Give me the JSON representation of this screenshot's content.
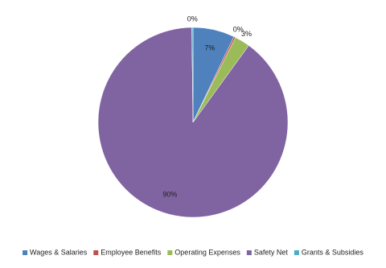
{
  "chart_data": {
    "type": "pie",
    "categories": [
      "Wages & Salaries",
      "Employee Benefits",
      "Operating Expenses",
      "Safety Net",
      "Grants & Subsidies"
    ],
    "values": [
      7.1,
      0.3,
      2.6,
      89.8,
      0.2
    ],
    "value_labels": [
      "7%",
      "0%",
      "3%",
      "90%",
      "0%"
    ],
    "colors": [
      "#4f81bd",
      "#c0504d",
      "#9bbb59",
      "#8064a2",
      "#4bacc6"
    ],
    "legend": "bottom"
  }
}
